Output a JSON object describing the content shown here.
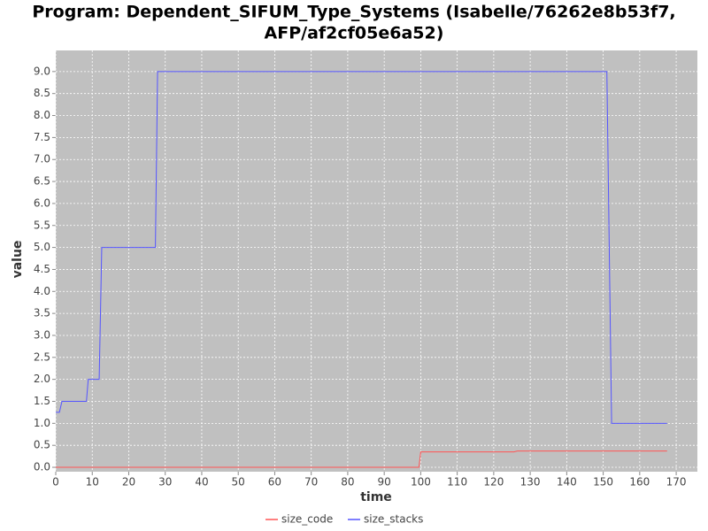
{
  "chart_data": {
    "type": "line",
    "title": [
      "Program: Dependent_SIFUM_Type_Systems (Isabelle/76262e8b53f7,",
      "AFP/af2cf05e6a52)"
    ],
    "x_label": "time",
    "y_label": "value",
    "xlim": [
      0,
      175.8
    ],
    "ylim": [
      -0.1,
      9.48
    ],
    "xticks": [
      0,
      10,
      20,
      30,
      40,
      50,
      60,
      70,
      80,
      90,
      100,
      110,
      120,
      130,
      140,
      150,
      160,
      170
    ],
    "yticks": [
      {
        "value": 0,
        "label": "0.0"
      },
      {
        "value": 0.5,
        "label": "0.5"
      },
      {
        "value": 1,
        "label": "1.0"
      },
      {
        "value": 1.5,
        "label": "1.5"
      },
      {
        "value": 2,
        "label": "2.0"
      },
      {
        "value": 2.5,
        "label": "2.5"
      },
      {
        "value": 3,
        "label": "3.0"
      },
      {
        "value": 3.5,
        "label": "3.5"
      },
      {
        "value": 4,
        "label": "4.0"
      },
      {
        "value": 4.5,
        "label": "4.5"
      },
      {
        "value": 5,
        "label": "5.0"
      },
      {
        "value": 5.5,
        "label": "5.5"
      },
      {
        "value": 6,
        "label": "6.0"
      },
      {
        "value": 6.5,
        "label": "6.5"
      },
      {
        "value": 7,
        "label": "7.0"
      },
      {
        "value": 7.5,
        "label": "7.5"
      },
      {
        "value": 8,
        "label": "8.0"
      },
      {
        "value": 8.5,
        "label": "8.5"
      },
      {
        "value": 9,
        "label": "9.0"
      }
    ],
    "grid": true,
    "legend": "bottom",
    "series": [
      {
        "name": "size_code",
        "color": "#ff5555",
        "x": [
          0,
          99.5,
          100,
          125.5,
          126.5,
          167.5
        ],
        "values": [
          0,
          0,
          0.35,
          0.35,
          0.37,
          0.37
        ]
      },
      {
        "name": "size_stacks",
        "color": "#5555ff",
        "x": [
          0,
          1,
          1.7,
          8.4,
          8.9,
          11.9,
          12.6,
          27.3,
          27.9,
          151,
          152.3,
          167.5
        ],
        "values": [
          1.25,
          1.25,
          1.5,
          1.5,
          2,
          2,
          5,
          5,
          9,
          9,
          1,
          1
        ]
      }
    ]
  }
}
